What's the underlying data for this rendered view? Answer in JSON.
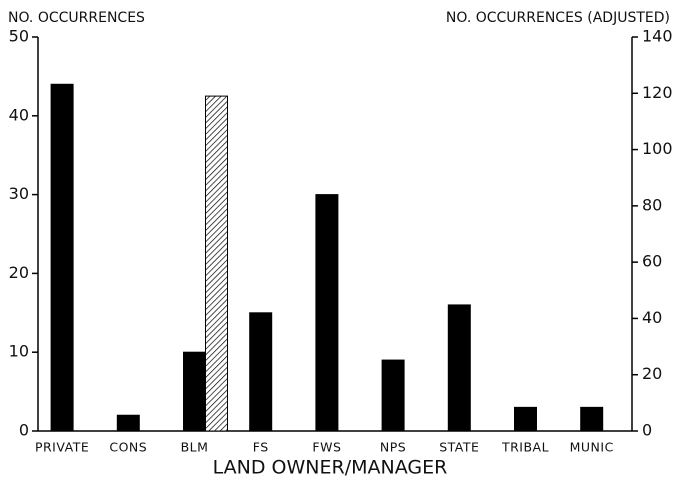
{
  "chart_data": {
    "type": "bar",
    "y_label": "NO. OCCURRENCES",
    "y2_label": "NO. OCCURRENCES (ADJUSTED)",
    "x_label": "LAND OWNER/MANAGER",
    "categories": [
      "PRIVATE",
      "CONS",
      "BLM",
      "FS",
      "FWS",
      "NPS",
      "STATE",
      "TRIBAL",
      "MUNIC"
    ],
    "series": [
      {
        "color": "#000000",
        "values": [
          44,
          2,
          10,
          15,
          30,
          9,
          16,
          3,
          3
        ]
      },
      {
        "color": "#000000",
        "hatch": true,
        "axis": "y2",
        "values": [
          null,
          null,
          119,
          null,
          null,
          null,
          null,
          null,
          null
        ]
      }
    ],
    "ylim": [
      0,
      50
    ],
    "yticks": [
      0,
      10,
      20,
      30,
      40,
      50
    ],
    "y2lim": [
      0,
      140
    ],
    "y2ticks": [
      0,
      20,
      40,
      60,
      80,
      100,
      120,
      140
    ],
    "grid": false
  }
}
